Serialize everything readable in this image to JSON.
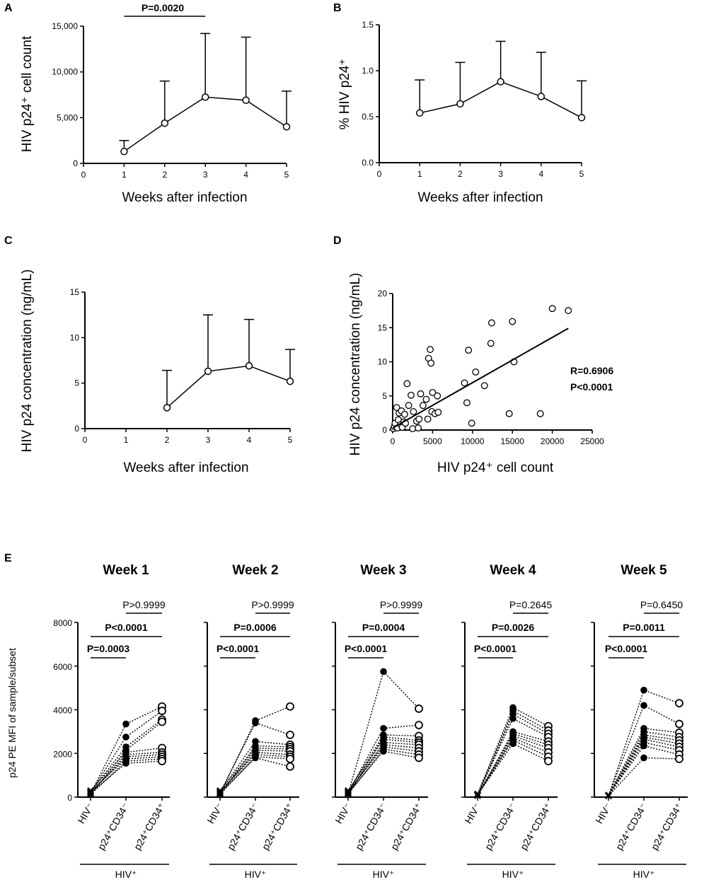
{
  "panels": {
    "A": {
      "label": "A",
      "type": "line",
      "ylabel": "HIV p24⁺ cell count",
      "xlabel": "Weeks after infection",
      "x_ticks": [
        "0",
        "1",
        "2",
        "3",
        "4",
        "5"
      ],
      "y_ticks": [
        "0",
        "5,000",
        "10,000",
        "15,000"
      ],
      "ylim": [
        0,
        15000
      ],
      "xlim": [
        0,
        5
      ],
      "x": [
        1,
        2,
        3,
        4,
        5
      ],
      "mean": [
        1300,
        4400,
        7250,
        6900,
        4000
      ],
      "upper": [
        2500,
        9000,
        14200,
        13800,
        7900
      ],
      "annotation": "P=0.0020"
    },
    "B": {
      "label": "B",
      "type": "line",
      "ylabel": "% HIV p24⁺",
      "xlabel": "Weeks after infection",
      "x_ticks": [
        "0",
        "1",
        "2",
        "3",
        "4",
        "5"
      ],
      "y_ticks": [
        "0.0",
        "0.5",
        "1.0",
        "1.5"
      ],
      "ylim": [
        0,
        1.5
      ],
      "xlim": [
        0,
        5
      ],
      "x": [
        1,
        2,
        3,
        4,
        5
      ],
      "mean": [
        0.54,
        0.64,
        0.88,
        0.72,
        0.49
      ],
      "upper": [
        0.9,
        1.09,
        1.32,
        1.2,
        0.89
      ]
    },
    "C": {
      "label": "C",
      "type": "line",
      "ylabel": "HIV p24 concentration (ng/mL)",
      "xlabel": "Weeks after infection",
      "x_ticks": [
        "0",
        "1",
        "2",
        "3",
        "4",
        "5"
      ],
      "y_ticks": [
        "0",
        "5",
        "10",
        "15"
      ],
      "ylim": [
        0,
        15
      ],
      "xlim": [
        0,
        5
      ],
      "x": [
        2,
        3,
        4,
        5
      ],
      "mean": [
        2.3,
        6.3,
        6.9,
        5.2
      ],
      "upper": [
        6.4,
        12.5,
        12.0,
        8.7
      ]
    },
    "D": {
      "label": "D",
      "type": "scatter",
      "ylabel": "HIV p24 concentration (ng/mL)",
      "xlabel": "HIV p24⁺ cell count",
      "x_ticks": [
        "0",
        "5000",
        "10000",
        "15000",
        "20000",
        "25000"
      ],
      "y_ticks": [
        "0",
        "5",
        "10",
        "15",
        "20"
      ],
      "xlim": [
        0,
        25000
      ],
      "ylim": [
        0,
        20
      ],
      "r_label": "R=0.6906",
      "p_label": "P<0.0001",
      "fit": {
        "x": [
          0,
          22000
        ],
        "y": [
          0.3,
          14.9
        ]
      },
      "points": [
        [
          100,
          0.2
        ],
        [
          200,
          0.5
        ],
        [
          300,
          1.0
        ],
        [
          500,
          3.3
        ],
        [
          600,
          0.3
        ],
        [
          700,
          1.5
        ],
        [
          800,
          2.5
        ],
        [
          1000,
          0.8
        ],
        [
          1100,
          2.8
        ],
        [
          1200,
          0.4
        ],
        [
          1400,
          1.2
        ],
        [
          1500,
          2.3
        ],
        [
          1600,
          1.0
        ],
        [
          1800,
          6.8
        ],
        [
          2000,
          3.6
        ],
        [
          2300,
          5.1
        ],
        [
          2500,
          0.2
        ],
        [
          2600,
          2.7
        ],
        [
          3000,
          1.3
        ],
        [
          3200,
          0.3
        ],
        [
          3300,
          1.6
        ],
        [
          3500,
          5.3
        ],
        [
          3800,
          3.6
        ],
        [
          4200,
          4.5
        ],
        [
          4400,
          1.6
        ],
        [
          4500,
          10.5
        ],
        [
          4700,
          11.8
        ],
        [
          4800,
          9.8
        ],
        [
          4900,
          2.7
        ],
        [
          5000,
          5.5
        ],
        [
          5300,
          2.4
        ],
        [
          5600,
          5.0
        ],
        [
          5700,
          2.6
        ],
        [
          9000,
          6.9
        ],
        [
          9300,
          4.0
        ],
        [
          9500,
          11.7
        ],
        [
          9900,
          1.0
        ],
        [
          10400,
          8.5
        ],
        [
          11500,
          6.5
        ],
        [
          12300,
          12.7
        ],
        [
          12400,
          15.7
        ],
        [
          14600,
          2.4
        ],
        [
          15000,
          15.9
        ],
        [
          15200,
          10.0
        ],
        [
          18500,
          2.4
        ],
        [
          20000,
          17.8
        ],
        [
          22000,
          17.5
        ]
      ]
    }
  },
  "panelE": {
    "label": "E",
    "ylabel": "p24 PE MFI of sample/subset",
    "y_ticks": [
      "0",
      "2000",
      "4000",
      "6000",
      "8000"
    ],
    "ylim": [
      0,
      8000
    ],
    "group_label": "HIV⁺",
    "x_labels": [
      "HIV⁻",
      "p24⁺CD34⁻",
      "p24⁺CD34⁺"
    ],
    "weeks": [
      {
        "title": "Week 1",
        "p_top": "P>0.9999",
        "p_mid": "P<0.0001",
        "p_low": "P=0.0003",
        "hiv_neg": [
          150,
          200,
          250,
          100,
          300,
          180,
          220,
          260,
          120,
          200
        ],
        "cd34neg": [
          3350,
          2750,
          2300,
          2150,
          2050,
          1950,
          1850,
          1750,
          1650,
          1550
        ],
        "cd34pos": [
          4150,
          3950,
          3550,
          3450,
          2250,
          2050,
          1950,
          1850,
          1750,
          1650
        ]
      },
      {
        "title": "Week 2",
        "p_top": "P>0.9999",
        "p_mid": "P=0.0006",
        "p_low": "P<0.0001",
        "hiv_neg": [
          150,
          200,
          250,
          100,
          300,
          180,
          220,
          260,
          120,
          200
        ],
        "cd34neg": [
          3500,
          3400,
          2550,
          2350,
          2250,
          2150,
          2050,
          1950,
          1850,
          1800
        ],
        "cd34pos": [
          4150,
          2850,
          2400,
          2300,
          2200,
          2100,
          1950,
          1850,
          1750,
          1400
        ]
      },
      {
        "title": "Week 3",
        "p_top": "P>0.9999",
        "p_mid": "P=0.0004",
        "p_low": "P<0.0001",
        "hiv_neg": [
          150,
          200,
          250,
          100,
          300,
          180,
          220,
          260,
          120,
          200
        ],
        "cd34neg": [
          5750,
          3150,
          2850,
          2750,
          2650,
          2500,
          2400,
          2300,
          2200,
          2100
        ],
        "cd34pos": [
          4050,
          3300,
          2800,
          2600,
          2500,
          2400,
          2250,
          2100,
          1950,
          1800
        ]
      },
      {
        "title": "Week 4",
        "p_top": "P=0.2645",
        "p_mid": "P=0.0026",
        "p_low": "P<0.0001",
        "hiv_neg": [
          150,
          100,
          80,
          120,
          60,
          90,
          110,
          70,
          130,
          100
        ],
        "cd34neg": [
          4100,
          3950,
          3800,
          3600,
          3000,
          2900,
          2800,
          2700,
          2600,
          2450
        ],
        "cd34pos": [
          3250,
          3050,
          2900,
          2750,
          2550,
          2400,
          2250,
          2050,
          1850,
          1650
        ]
      },
      {
        "title": "Week 5",
        "p_top": "P=0.6450",
        "p_mid": "P=0.0011",
        "p_low": "P<0.0001",
        "hiv_neg": [
          60,
          80,
          100,
          50,
          70,
          90,
          60,
          80,
          70,
          60
        ],
        "cd34neg": [
          4900,
          4200,
          3150,
          3000,
          2850,
          2750,
          2650,
          2500,
          2350,
          1800
        ],
        "cd34pos": [
          4300,
          3350,
          2950,
          2750,
          2600,
          2450,
          2300,
          2150,
          1950,
          1750
        ]
      }
    ]
  }
}
